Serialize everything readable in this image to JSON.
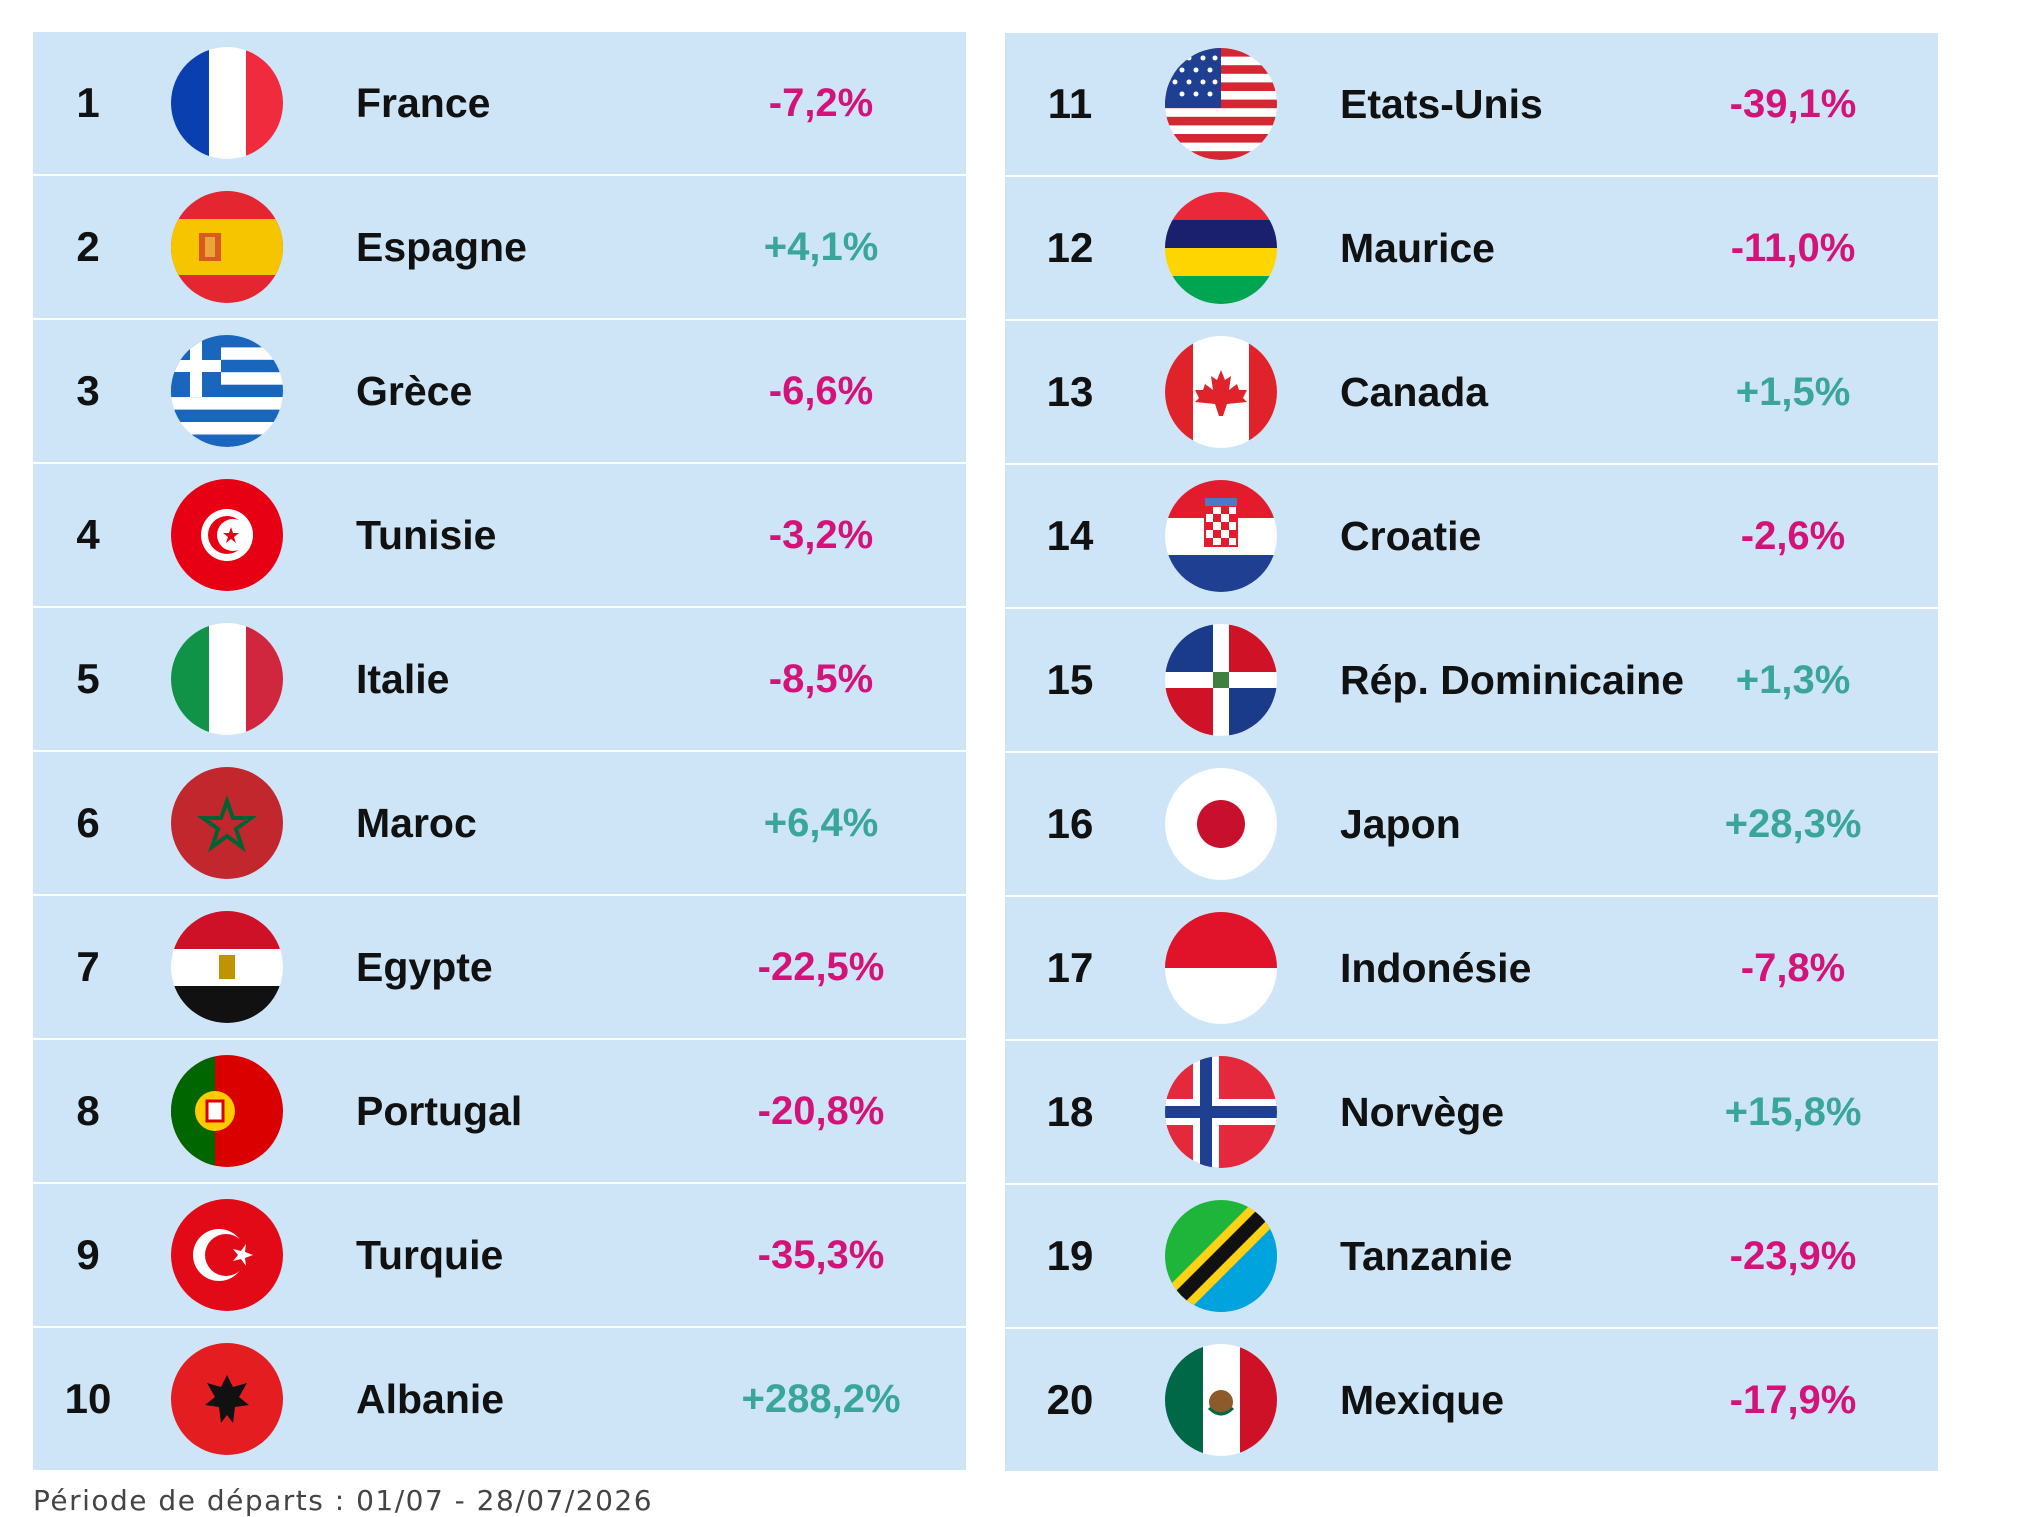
{
  "colors": {
    "row_bg": "#cde5f7",
    "negative": "#d4137a",
    "positive": "#3aa59a"
  },
  "left_rows": [
    {
      "rank": "1",
      "name": "France",
      "value": "-7,2%",
      "trend": "neg",
      "flag": "france-flag-icon"
    },
    {
      "rank": "2",
      "name": "Espagne",
      "value": "+4,1%",
      "trend": "pos",
      "flag": "spain-flag-icon"
    },
    {
      "rank": "3",
      "name": "Grèce",
      "value": "-6,6%",
      "trend": "neg",
      "flag": "greece-flag-icon"
    },
    {
      "rank": "4",
      "name": "Tunisie",
      "value": "-3,2%",
      "trend": "neg",
      "flag": "tunisia-flag-icon"
    },
    {
      "rank": "5",
      "name": "Italie",
      "value": "-8,5%",
      "trend": "neg",
      "flag": "italy-flag-icon"
    },
    {
      "rank": "6",
      "name": "Maroc",
      "value": "+6,4%",
      "trend": "pos",
      "flag": "morocco-flag-icon"
    },
    {
      "rank": "7",
      "name": "Egypte",
      "value": "-22,5%",
      "trend": "neg",
      "flag": "egypt-flag-icon"
    },
    {
      "rank": "8",
      "name": "Portugal",
      "value": "-20,8%",
      "trend": "neg",
      "flag": "portugal-flag-icon"
    },
    {
      "rank": "9",
      "name": "Turquie",
      "value": "-35,3%",
      "trend": "neg",
      "flag": "turkey-flag-icon"
    },
    {
      "rank": "10",
      "name": "Albanie",
      "value": "+288,2%",
      "trend": "pos",
      "flag": "albania-flag-icon"
    }
  ],
  "right_rows": [
    {
      "rank": "11",
      "name": "Etats-Unis",
      "value": "-39,1%",
      "trend": "neg",
      "flag": "usa-flag-icon"
    },
    {
      "rank": "12",
      "name": "Maurice",
      "value": "-11,0%",
      "trend": "neg",
      "flag": "mauritius-flag-icon"
    },
    {
      "rank": "13",
      "name": "Canada",
      "value": "+1,5%",
      "trend": "pos",
      "flag": "canada-flag-icon"
    },
    {
      "rank": "14",
      "name": "Croatie",
      "value": "-2,6%",
      "trend": "neg",
      "flag": "croatia-flag-icon"
    },
    {
      "rank": "15",
      "name": "Rép. Dominicaine",
      "value": "+1,3%",
      "trend": "pos",
      "flag": "dominican-republic-flag-icon"
    },
    {
      "rank": "16",
      "name": "Japon",
      "value": "+28,3%",
      "trend": "pos",
      "flag": "japan-flag-icon"
    },
    {
      "rank": "17",
      "name": "Indonésie",
      "value": "-7,8%",
      "trend": "neg",
      "flag": "indonesia-flag-icon"
    },
    {
      "rank": "18",
      "name": "Norvège",
      "value": "+15,8%",
      "trend": "pos",
      "flag": "norway-flag-icon"
    },
    {
      "rank": "19",
      "name": "Tanzanie",
      "value": "-23,9%",
      "trend": "neg",
      "flag": "tanzania-flag-icon"
    },
    {
      "rank": "20",
      "name": "Mexique",
      "value": "-17,9%",
      "trend": "neg",
      "flag": "mexico-flag-icon"
    }
  ],
  "footnote": "Période de départs : 01/07 - 28/07/2026"
}
